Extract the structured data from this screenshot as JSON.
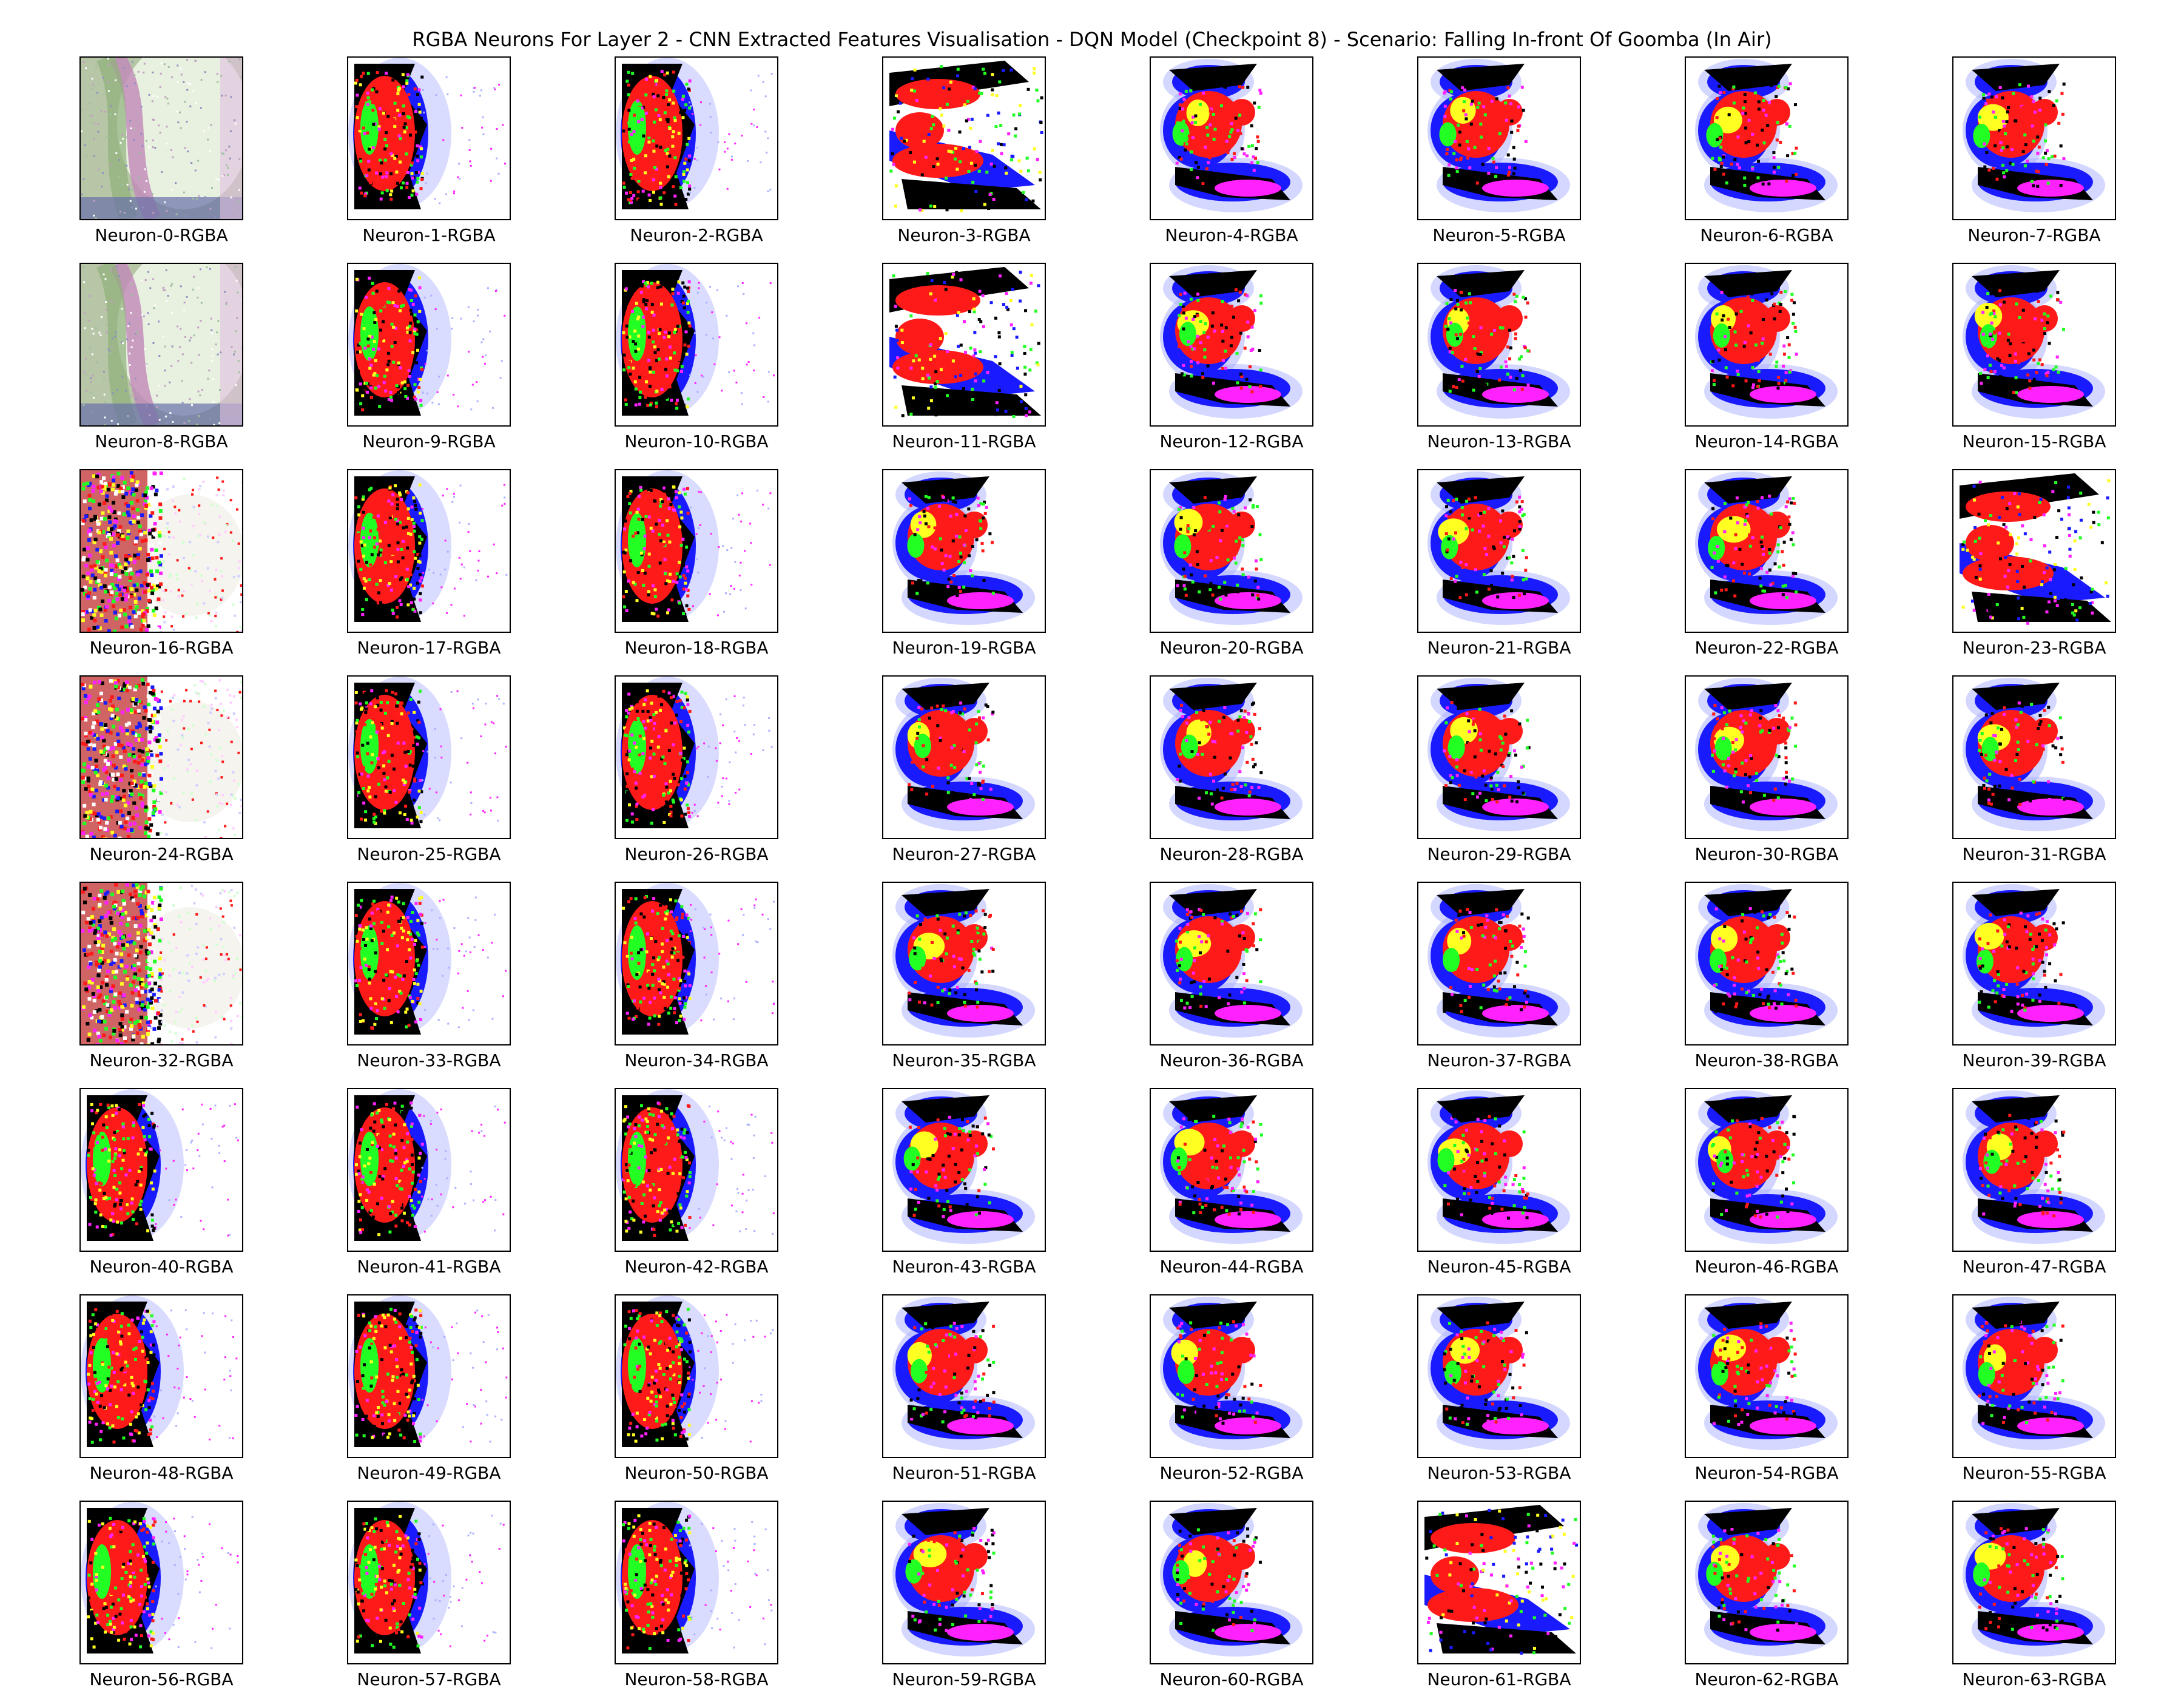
{
  "title": "RGBA Neurons For Layer 2 - CNN Extracted Features Visualisation - DQN Model (Checkpoint 8) - Scenario: Falling In-front Of Goomba (In Air)",
  "panels": [
    {
      "label": "Neuron-0-RGBA",
      "style": "pastel"
    },
    {
      "label": "Neuron-1-RGBA",
      "style": "left"
    },
    {
      "label": "Neuron-2-RGBA",
      "style": "left"
    },
    {
      "label": "Neuron-3-RGBA",
      "style": "streak"
    },
    {
      "label": "Neuron-4-RGBA",
      "style": "shape"
    },
    {
      "label": "Neuron-5-RGBA",
      "style": "shape"
    },
    {
      "label": "Neuron-6-RGBA",
      "style": "shape"
    },
    {
      "label": "Neuron-7-RGBA",
      "style": "shape"
    },
    {
      "label": "Neuron-8-RGBA",
      "style": "pastel"
    },
    {
      "label": "Neuron-9-RGBA",
      "style": "left"
    },
    {
      "label": "Neuron-10-RGBA",
      "style": "left"
    },
    {
      "label": "Neuron-11-RGBA",
      "style": "streak"
    },
    {
      "label": "Neuron-12-RGBA",
      "style": "shape"
    },
    {
      "label": "Neuron-13-RGBA",
      "style": "shape"
    },
    {
      "label": "Neuron-14-RGBA",
      "style": "shape"
    },
    {
      "label": "Neuron-15-RGBA",
      "style": "shape"
    },
    {
      "label": "Neuron-16-RGBA",
      "style": "noisy"
    },
    {
      "label": "Neuron-17-RGBA",
      "style": "left"
    },
    {
      "label": "Neuron-18-RGBA",
      "style": "left"
    },
    {
      "label": "Neuron-19-RGBA",
      "style": "shape"
    },
    {
      "label": "Neuron-20-RGBA",
      "style": "shape"
    },
    {
      "label": "Neuron-21-RGBA",
      "style": "shape"
    },
    {
      "label": "Neuron-22-RGBA",
      "style": "shape"
    },
    {
      "label": "Neuron-23-RGBA",
      "style": "streak"
    },
    {
      "label": "Neuron-24-RGBA",
      "style": "noisy"
    },
    {
      "label": "Neuron-25-RGBA",
      "style": "left"
    },
    {
      "label": "Neuron-26-RGBA",
      "style": "left"
    },
    {
      "label": "Neuron-27-RGBA",
      "style": "shape"
    },
    {
      "label": "Neuron-28-RGBA",
      "style": "shape"
    },
    {
      "label": "Neuron-29-RGBA",
      "style": "shape"
    },
    {
      "label": "Neuron-30-RGBA",
      "style": "shape"
    },
    {
      "label": "Neuron-31-RGBA",
      "style": "shape"
    },
    {
      "label": "Neuron-32-RGBA",
      "style": "noisy"
    },
    {
      "label": "Neuron-33-RGBA",
      "style": "left"
    },
    {
      "label": "Neuron-34-RGBA",
      "style": "left"
    },
    {
      "label": "Neuron-35-RGBA",
      "style": "shape"
    },
    {
      "label": "Neuron-36-RGBA",
      "style": "shape"
    },
    {
      "label": "Neuron-37-RGBA",
      "style": "shape"
    },
    {
      "label": "Neuron-38-RGBA",
      "style": "shape"
    },
    {
      "label": "Neuron-39-RGBA",
      "style": "shape"
    },
    {
      "label": "Neuron-40-RGBA",
      "style": "left"
    },
    {
      "label": "Neuron-41-RGBA",
      "style": "left"
    },
    {
      "label": "Neuron-42-RGBA",
      "style": "left"
    },
    {
      "label": "Neuron-43-RGBA",
      "style": "shape"
    },
    {
      "label": "Neuron-44-RGBA",
      "style": "shape"
    },
    {
      "label": "Neuron-45-RGBA",
      "style": "shape"
    },
    {
      "label": "Neuron-46-RGBA",
      "style": "shape"
    },
    {
      "label": "Neuron-47-RGBA",
      "style": "shape"
    },
    {
      "label": "Neuron-48-RGBA",
      "style": "left"
    },
    {
      "label": "Neuron-49-RGBA",
      "style": "left"
    },
    {
      "label": "Neuron-50-RGBA",
      "style": "left"
    },
    {
      "label": "Neuron-51-RGBA",
      "style": "shape"
    },
    {
      "label": "Neuron-52-RGBA",
      "style": "shape"
    },
    {
      "label": "Neuron-53-RGBA",
      "style": "shape"
    },
    {
      "label": "Neuron-54-RGBA",
      "style": "shape"
    },
    {
      "label": "Neuron-55-RGBA",
      "style": "shape"
    },
    {
      "label": "Neuron-56-RGBA",
      "style": "left"
    },
    {
      "label": "Neuron-57-RGBA",
      "style": "left"
    },
    {
      "label": "Neuron-58-RGBA",
      "style": "left"
    },
    {
      "label": "Neuron-59-RGBA",
      "style": "shape"
    },
    {
      "label": "Neuron-60-RGBA",
      "style": "shape"
    },
    {
      "label": "Neuron-61-RGBA",
      "style": "streak"
    },
    {
      "label": "Neuron-62-RGBA",
      "style": "shape"
    },
    {
      "label": "Neuron-63-RGBA",
      "style": "shape"
    }
  ],
  "palette": {
    "red": "#ff1a1a",
    "blue": "#1a1aff",
    "black": "#000000",
    "green": "#22ff22",
    "yellow": "#ffff22",
    "magenta": "#ff22ff",
    "light_blue": "#aab0ff",
    "pastel_bg": "#e8f0e0"
  }
}
